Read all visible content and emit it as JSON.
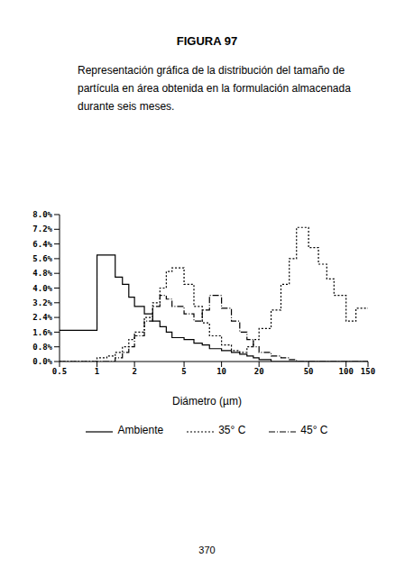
{
  "title": "FIGURA 97",
  "caption": "Representación gráfica de la distribución del tamaño de partícula en área obtenida en la formulación almacenada durante seis meses.",
  "page_number": "370",
  "chart_data": {
    "type": "histogram",
    "x_label": "Diámetro (µm)",
    "log": "x",
    "legend": "bottom",
    "bins": [
      0.5,
      0.6,
      0.7,
      0.8,
      0.9,
      1.0,
      1.2,
      1.4,
      1.6,
      1.8,
      2.0,
      2.4,
      2.8,
      3.2,
      3.6,
      4.0,
      5.0,
      6.0,
      7.0,
      8.0,
      10,
      12,
      14,
      16,
      18,
      20,
      25,
      30,
      35,
      40,
      50,
      60,
      70,
      80,
      100,
      120,
      150
    ],
    "series": [
      {
        "name": "Ambiente",
        "color": "#000000",
        "line_style": "solid",
        "values": [
          1.7,
          1.7,
          1.7,
          1.7,
          1.7,
          5.8,
          5.8,
          4.6,
          4.2,
          3.5,
          3.0,
          2.6,
          2.2,
          1.9,
          1.6,
          1.3,
          1.2,
          1.0,
          0.9,
          0.7,
          0.6,
          0.5,
          0.4,
          0.3,
          0.2,
          0.1,
          0,
          0,
          0,
          0,
          0,
          0,
          0,
          0,
          0,
          0
        ]
      },
      {
        "name": "35° C",
        "color": "#000000",
        "line_style": "dotted",
        "values": [
          0,
          0,
          0,
          0,
          0,
          0.2,
          0.3,
          0.5,
          0.8,
          1.2,
          1.6,
          2.4,
          3.2,
          4.0,
          4.9,
          5.1,
          4.2,
          3.0,
          2.1,
          1.4,
          0.9,
          0.6,
          0.5,
          0.8,
          1.2,
          1.8,
          2.8,
          4.2,
          5.6,
          7.3,
          6.2,
          5.3,
          4.5,
          3.6,
          2.2,
          2.9
        ]
      },
      {
        "name": "45° C",
        "color": "#000000",
        "line_style": "dashdot",
        "values": [
          0,
          0,
          0,
          0,
          0,
          0,
          0,
          0.2,
          0.5,
          0.8,
          1.4,
          2.2,
          3.0,
          3.6,
          3.4,
          3.0,
          2.6,
          2.2,
          2.8,
          3.6,
          2.9,
          2.2,
          1.6,
          1.2,
          0.8,
          0.5,
          0.3,
          0.2,
          0.1,
          0,
          0,
          0,
          0,
          0,
          0,
          0
        ]
      }
    ],
    "xlim": [
      0.5,
      150
    ],
    "xticks": [
      0.5,
      1,
      2,
      5,
      10,
      20,
      50,
      100,
      150
    ],
    "ylim": [
      0,
      8
    ],
    "yticks": [
      {
        "value": 0,
        "label": "0.0%"
      },
      {
        "value": 0.8,
        "label": "0.8%"
      },
      {
        "value": 1.6,
        "label": "1.6%"
      },
      {
        "value": 2.4,
        "label": "2.4%"
      },
      {
        "value": 3.2,
        "label": "3.2%"
      },
      {
        "value": 4.0,
        "label": "4.0%"
      },
      {
        "value": 4.8,
        "label": "4.8%"
      },
      {
        "value": 5.6,
        "label": "5.6%"
      },
      {
        "value": 6.4,
        "label": "6.4%"
      },
      {
        "value": 7.2,
        "label": "7.2%"
      },
      {
        "value": 8.0,
        "label": "8.0%"
      }
    ]
  }
}
